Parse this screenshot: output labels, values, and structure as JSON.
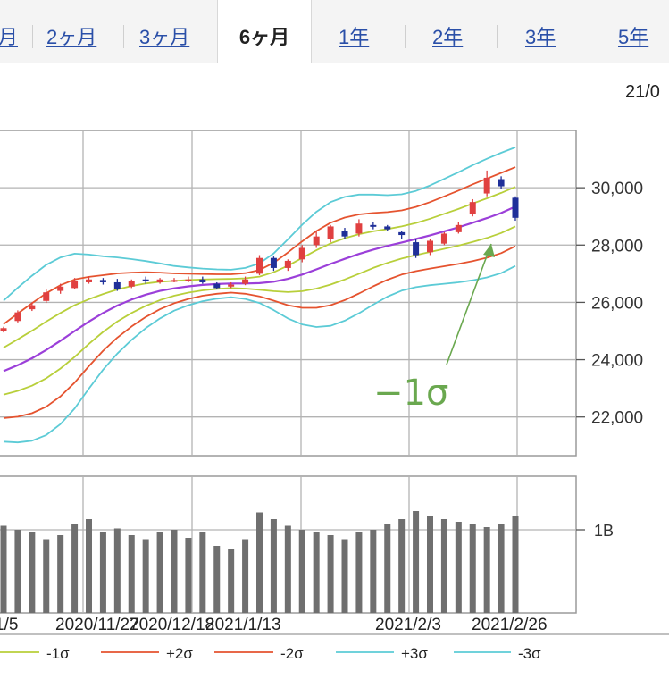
{
  "tabs": [
    {
      "label": "月",
      "active": false
    },
    {
      "label": "2ヶ月",
      "active": false
    },
    {
      "label": "3ヶ月",
      "active": false
    },
    {
      "label": "6ヶ月",
      "active": true
    },
    {
      "label": "1年",
      "active": false
    },
    {
      "label": "2年",
      "active": false
    },
    {
      "label": "3年",
      "active": false
    },
    {
      "label": "5年",
      "active": false
    }
  ],
  "header": {
    "date_fragment": "21/0"
  },
  "chart_data": {
    "type": "candlestick-bollinger",
    "x_tick_labels": [
      "1/5",
      "2020/11/27",
      "2020/12/18",
      "2021/1/13",
      "2021/2/3",
      "2021/2/26"
    ],
    "price_axis": {
      "ticks": [
        30000,
        28000,
        26000,
        24000,
        22000
      ],
      "tick_labels": [
        "30,000",
        "28,000",
        "26,000",
        "24,000",
        "22,000"
      ],
      "ylim": [
        20650,
        32000
      ]
    },
    "volume_axis": {
      "tick_label": "1B"
    },
    "annotation": {
      "text": "−1σ"
    },
    "legend": [
      {
        "label": "-1σ",
        "color": "#b8cf3a"
      },
      {
        "label": "+2σ",
        "color": "#e5532f"
      },
      {
        "label": "-2σ",
        "color": "#e5532f"
      },
      {
        "label": "+3σ",
        "color": "#5ccbd6"
      },
      {
        "label": "-3σ",
        "color": "#5ccbd6"
      }
    ],
    "colors": {
      "sma": "#9b3fd9",
      "sigma1": "#b8cf3a",
      "sigma2": "#e5532f",
      "sigma3": "#5ccbd6",
      "up": "#e04040",
      "down": "#1f2f99",
      "volume": "#6f6f6f",
      "annotation": "#6aa84f"
    },
    "sma": [
      23600,
      23810,
      24050,
      24340,
      24660,
      25000,
      25330,
      25630,
      25890,
      26100,
      26270,
      26400,
      26490,
      26560,
      26610,
      26640,
      26660,
      26660,
      26670,
      26720,
      26820,
      26970,
      27150,
      27340,
      27520,
      27690,
      27840,
      27970,
      28090,
      28210,
      28340,
      28480,
      28620,
      28780,
      28940,
      29120,
      29340
    ],
    "sigma": [
      820,
      900,
      960,
      990,
      970,
      900,
      780,
      660,
      560,
      470,
      390,
      320,
      260,
      220,
      190,
      170,
      160,
      180,
      230,
      330,
      460,
      580,
      670,
      720,
      720,
      690,
      640,
      590,
      560,
      560,
      580,
      610,
      640,
      670,
      690,
      700,
      690
    ],
    "candles": [
      {
        "o": 24990,
        "c": 25100,
        "h": 25150,
        "l": 24950
      },
      {
        "o": 25350,
        "c": 25650,
        "h": 25720,
        "l": 25300
      },
      {
        "o": 25760,
        "c": 25900,
        "h": 26000,
        "l": 25700
      },
      {
        "o": 26050,
        "c": 26350,
        "h": 26450,
        "l": 25980
      },
      {
        "o": 26400,
        "c": 26550,
        "h": 26650,
        "l": 26300
      },
      {
        "o": 26500,
        "c": 26750,
        "h": 26850,
        "l": 26450
      },
      {
        "o": 26700,
        "c": 26800,
        "h": 26900,
        "l": 26650
      },
      {
        "o": 26780,
        "c": 26700,
        "h": 26850,
        "l": 26620
      },
      {
        "o": 26700,
        "c": 26450,
        "h": 26820,
        "l": 26400
      },
      {
        "o": 26550,
        "c": 26750,
        "h": 26800,
        "l": 26500
      },
      {
        "o": 26800,
        "c": 26750,
        "h": 26900,
        "l": 26650
      },
      {
        "o": 26700,
        "c": 26800,
        "h": 26850,
        "l": 26650
      },
      {
        "o": 26750,
        "c": 26780,
        "h": 26850,
        "l": 26700
      },
      {
        "o": 26750,
        "c": 26800,
        "h": 26900,
        "l": 26700
      },
      {
        "o": 26800,
        "c": 26700,
        "h": 26900,
        "l": 26650
      },
      {
        "o": 26650,
        "c": 26500,
        "h": 26700,
        "l": 26450
      },
      {
        "o": 26550,
        "c": 26620,
        "h": 26700,
        "l": 26500
      },
      {
        "o": 26650,
        "c": 26800,
        "h": 26900,
        "l": 26600
      },
      {
        "o": 27000,
        "c": 27550,
        "h": 27650,
        "l": 26950
      },
      {
        "o": 27550,
        "c": 27200,
        "h": 27600,
        "l": 27100
      },
      {
        "o": 27200,
        "c": 27450,
        "h": 27500,
        "l": 27100
      },
      {
        "o": 27500,
        "c": 27900,
        "h": 28000,
        "l": 27400
      },
      {
        "o": 28000,
        "c": 28300,
        "h": 28500,
        "l": 27900
      },
      {
        "o": 28200,
        "c": 28650,
        "h": 28700,
        "l": 28100
      },
      {
        "o": 28500,
        "c": 28300,
        "h": 28600,
        "l": 28200
      },
      {
        "o": 28400,
        "c": 28750,
        "h": 28900,
        "l": 28300
      },
      {
        "o": 28700,
        "c": 28650,
        "h": 28800,
        "l": 28550
      },
      {
        "o": 28650,
        "c": 28550,
        "h": 28700,
        "l": 28500
      },
      {
        "o": 28450,
        "c": 28350,
        "h": 28500,
        "l": 28200
      },
      {
        "o": 28100,
        "c": 27650,
        "h": 28200,
        "l": 27550
      },
      {
        "o": 27750,
        "c": 28150,
        "h": 28200,
        "l": 27650
      },
      {
        "o": 28050,
        "c": 28400,
        "h": 28450,
        "l": 28000
      },
      {
        "o": 28450,
        "c": 28700,
        "h": 28800,
        "l": 28400
      },
      {
        "o": 29100,
        "c": 29500,
        "h": 29600,
        "l": 29000
      },
      {
        "o": 29800,
        "c": 30350,
        "h": 30600,
        "l": 29700
      },
      {
        "o": 30300,
        "c": 30050,
        "h": 30400,
        "l": 29950
      },
      {
        "o": 29650,
        "c": 28950,
        "h": 29700,
        "l": 28850
      }
    ],
    "volumes": [
      0.65,
      0.62,
      0.6,
      0.55,
      0.58,
      0.66,
      0.7,
      0.6,
      0.63,
      0.58,
      0.55,
      0.6,
      0.62,
      0.56,
      0.6,
      0.5,
      0.48,
      0.55,
      0.75,
      0.7,
      0.65,
      0.62,
      0.6,
      0.58,
      0.55,
      0.6,
      0.62,
      0.66,
      0.7,
      0.76,
      0.72,
      0.7,
      0.68,
      0.66,
      0.64,
      0.66,
      0.72
    ]
  }
}
